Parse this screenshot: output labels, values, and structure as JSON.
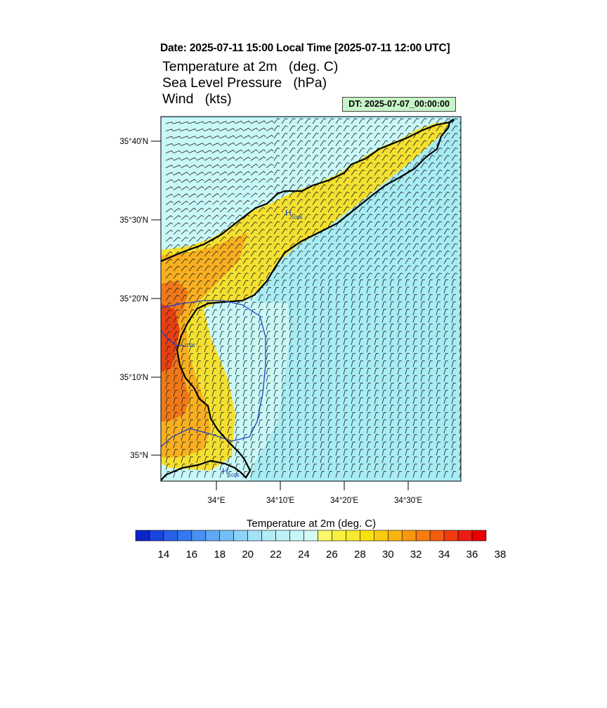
{
  "header": {
    "date_line": "Date: 2025-07-11  15:00 Local Time [2025-07-11  12:00 UTC]",
    "title_lines": [
      "Temperature at 2m   (deg. C)",
      "Sea Level Pressure   (hPa)",
      "Wind   (kts)"
    ],
    "dt_badge": "DT: 2025-07-07_00:00:00"
  },
  "map": {
    "lat_labels": [
      "35°40'N",
      "35°30'N",
      "35°20'N",
      "35°10'N",
      "35°N"
    ],
    "lon_labels": [
      "34°E",
      "34°10'E",
      "34°20'E",
      "34°30'E"
    ],
    "pressure_labels": [
      "1006",
      "1006",
      "1006"
    ],
    "high_symbol": "H",
    "colors": {
      "sea": "#a8ecf4",
      "cool_land": "#c8f8f8",
      "warm": "#f4e030",
      "orange": "#f8b020",
      "hot": "#f07818",
      "hottest": "#e84010",
      "isobar": "#2040c0"
    }
  },
  "colorbar": {
    "title": "Temperature at 2m  (deg. C)",
    "tick_labels": [
      "14",
      "16",
      "18",
      "20",
      "22",
      "24",
      "26",
      "28",
      "30",
      "32",
      "34",
      "36",
      "38"
    ],
    "colors": [
      "#0a24c8",
      "#1a44e0",
      "#2860e8",
      "#3478ee",
      "#4890f2",
      "#5ea8f4",
      "#76bef6",
      "#8ed2f6",
      "#a4e2f6",
      "#b2ecf6",
      "#bef2f6",
      "#c8f6f6",
      "#d4faf8",
      "#f8f868",
      "#f8f040",
      "#f8e830",
      "#f8e010",
      "#f8cc10",
      "#f8b410",
      "#f89810",
      "#f87c10",
      "#f45c10",
      "#f03c10",
      "#ec1c10",
      "#e80000"
    ]
  }
}
